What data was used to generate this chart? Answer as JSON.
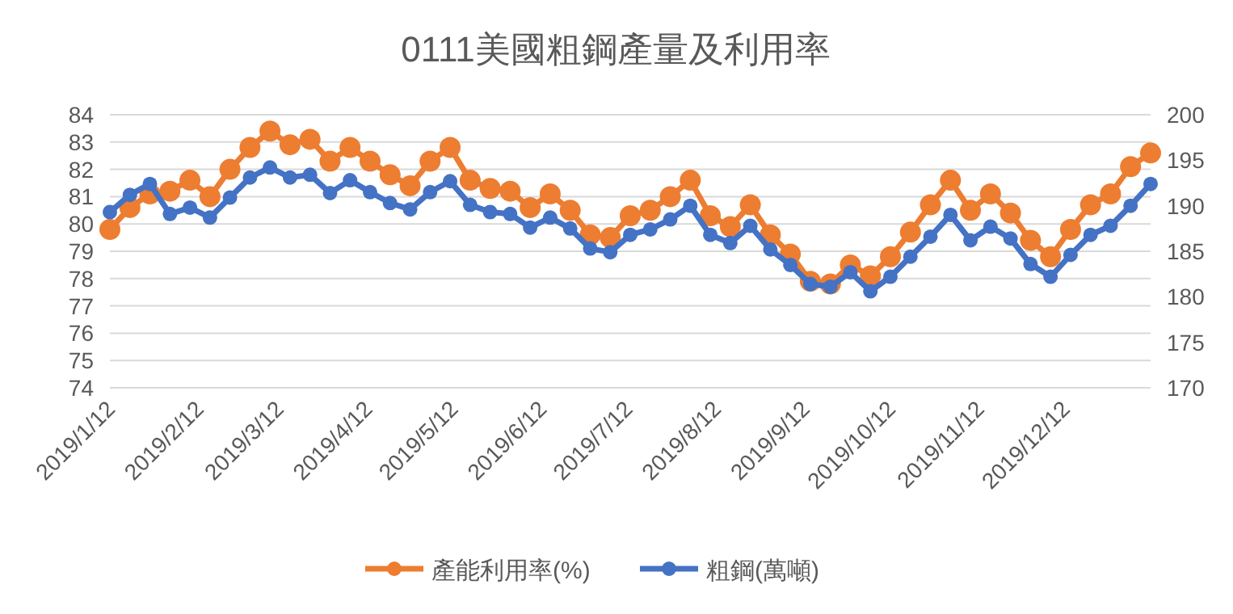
{
  "chart_data": {
    "type": "line",
    "title": "0111美國粗鋼產量及利用率",
    "x": [
      "2019-01-12",
      "2019-01-19",
      "2019-01-26",
      "2019-02-02",
      "2019-02-09",
      "2019-02-16",
      "2019-02-23",
      "2019-03-02",
      "2019-03-09",
      "2019-03-16",
      "2019-03-23",
      "2019-03-30",
      "2019-04-06",
      "2019-04-13",
      "2019-04-20",
      "2019-04-27",
      "2019-05-04",
      "2019-05-11",
      "2019-05-18",
      "2019-05-25",
      "2019-06-01",
      "2019-06-08",
      "2019-06-15",
      "2019-06-22",
      "2019-06-29",
      "2019-07-06",
      "2019-07-13",
      "2019-07-20",
      "2019-07-27",
      "2019-08-03",
      "2019-08-10",
      "2019-08-17",
      "2019-08-24",
      "2019-08-31",
      "2019-09-07",
      "2019-09-14",
      "2019-09-21",
      "2019-09-28",
      "2019-10-05",
      "2019-10-12",
      "2019-10-19",
      "2019-10-26",
      "2019-11-02",
      "2019-11-09",
      "2019-11-16",
      "2019-11-23",
      "2019-11-30",
      "2019-12-07",
      "2019-12-14",
      "2019-12-21",
      "2019-12-28",
      "2020-01-04",
      "2020-01-11"
    ],
    "series": [
      {
        "name": "產能利用率(%)",
        "color": "#ed7d31",
        "values": [
          79.8,
          80.6,
          81.1,
          81.2,
          81.6,
          81.0,
          82.0,
          82.8,
          83.4,
          82.9,
          83.1,
          82.3,
          82.8,
          82.3,
          81.8,
          81.4,
          82.3,
          82.8,
          81.6,
          81.3,
          81.2,
          80.6,
          81.1,
          80.5,
          79.6,
          79.5,
          80.3,
          80.5,
          81.0,
          81.6,
          80.3,
          79.9,
          80.7,
          79.6,
          78.9,
          77.9,
          77.8,
          78.5,
          78.1,
          78.8,
          79.7,
          80.7,
          81.6,
          80.5,
          81.1,
          80.4,
          79.4,
          78.8,
          79.8,
          80.7,
          81.1,
          82.1,
          82.6
        ]
      },
      {
        "name": "粗鋼(萬噸)",
        "color": "#4472c4",
        "axis": "y2",
        "values": [
          189.3,
          191.2,
          192.4,
          189.1,
          189.8,
          188.7,
          190.9,
          193.1,
          194.2,
          193.1,
          193.4,
          191.4,
          192.8,
          191.5,
          190.3,
          189.6,
          191.5,
          192.7,
          190.1,
          189.3,
          189.1,
          187.6,
          188.7,
          187.5,
          185.3,
          184.9,
          186.8,
          187.4,
          188.5,
          190.0,
          186.8,
          185.9,
          187.8,
          185.2,
          183.5,
          181.4,
          181.1,
          182.7,
          180.6,
          182.2,
          184.4,
          186.6,
          189.0,
          186.2,
          187.7,
          186.4,
          183.6,
          182.2,
          184.6,
          186.8,
          187.8,
          190.0,
          192.4
        ]
      }
    ],
    "xlim": [
      "2019-01-12",
      "2020-01-11"
    ],
    "xticks": [
      {
        "value": "2019-01-12",
        "label": "2019/1/12"
      },
      {
        "value": "2019-02-12",
        "label": "2019/2/12"
      },
      {
        "value": "2019-03-12",
        "label": "2019/3/12"
      },
      {
        "value": "2019-04-12",
        "label": "2019/4/12"
      },
      {
        "value": "2019-05-12",
        "label": "2019/5/12"
      },
      {
        "value": "2019-06-12",
        "label": "2019/6/12"
      },
      {
        "value": "2019-07-12",
        "label": "2019/7/12"
      },
      {
        "value": "2019-08-12",
        "label": "2019/8/12"
      },
      {
        "value": "2019-09-12",
        "label": "2019/9/12"
      },
      {
        "value": "2019-10-12",
        "label": "2019/10/12"
      },
      {
        "value": "2019-11-12",
        "label": "2019/11/12"
      },
      {
        "value": "2019-12-12",
        "label": "2019/12/12"
      }
    ],
    "ylim": [
      74,
      84
    ],
    "yticks": [
      74,
      75,
      76,
      77,
      78,
      79,
      80,
      81,
      82,
      83,
      84
    ],
    "y2lim": [
      170,
      200
    ],
    "y2ticks": [
      170,
      175,
      180,
      185,
      190,
      195,
      200
    ],
    "grid": "y",
    "legend": "bottom",
    "marker": "circle",
    "line_style": "solid"
  }
}
